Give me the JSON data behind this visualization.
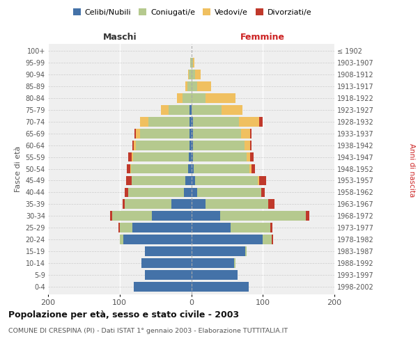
{
  "age_groups": [
    "0-4",
    "5-9",
    "10-14",
    "15-19",
    "20-24",
    "25-29",
    "30-34",
    "35-39",
    "40-44",
    "45-49",
    "50-54",
    "55-59",
    "60-64",
    "65-69",
    "70-74",
    "75-79",
    "80-84",
    "85-89",
    "90-94",
    "95-99",
    "100+"
  ],
  "birth_years": [
    "1998-2002",
    "1993-1997",
    "1988-1992",
    "1983-1987",
    "1978-1982",
    "1973-1977",
    "1968-1972",
    "1963-1967",
    "1958-1962",
    "1953-1957",
    "1948-1952",
    "1943-1947",
    "1938-1942",
    "1933-1937",
    "1928-1932",
    "1923-1927",
    "1918-1922",
    "1913-1917",
    "1908-1912",
    "1903-1907",
    "≤ 1902"
  ],
  "maschi": {
    "celibi": [
      80,
      65,
      70,
      65,
      95,
      82,
      55,
      28,
      10,
      8,
      4,
      3,
      2,
      2,
      2,
      2,
      0,
      0,
      0,
      0,
      0
    ],
    "coniugati": [
      0,
      0,
      0,
      0,
      5,
      18,
      55,
      65,
      78,
      75,
      80,
      78,
      75,
      70,
      58,
      30,
      12,
      5,
      3,
      1,
      0
    ],
    "vedovi": [
      0,
      0,
      0,
      0,
      0,
      0,
      0,
      0,
      0,
      0,
      1,
      2,
      3,
      5,
      12,
      10,
      8,
      3,
      1,
      0,
      0
    ],
    "divorziati": [
      0,
      0,
      0,
      0,
      0,
      2,
      3,
      3,
      5,
      8,
      5,
      5,
      2,
      2,
      0,
      0,
      0,
      0,
      0,
      0,
      0
    ]
  },
  "femmine": {
    "nubili": [
      80,
      65,
      60,
      75,
      100,
      55,
      40,
      20,
      8,
      5,
      3,
      2,
      2,
      2,
      2,
      0,
      0,
      0,
      0,
      0,
      0
    ],
    "coniugate": [
      0,
      0,
      2,
      2,
      12,
      55,
      120,
      88,
      90,
      88,
      78,
      75,
      72,
      68,
      65,
      42,
      20,
      8,
      5,
      2,
      0
    ],
    "vedove": [
      0,
      0,
      0,
      0,
      0,
      0,
      0,
      0,
      0,
      2,
      3,
      5,
      8,
      12,
      28,
      30,
      42,
      20,
      8,
      2,
      0
    ],
    "divorziate": [
      0,
      0,
      0,
      0,
      2,
      3,
      5,
      8,
      5,
      10,
      5,
      5,
      2,
      2,
      5,
      0,
      0,
      0,
      0,
      0,
      0
    ]
  },
  "colors": {
    "celibi_nubili": "#4472a8",
    "coniugati": "#b5c98e",
    "vedovi": "#f0c060",
    "divorziati": "#c0392b"
  },
  "xlim": 200,
  "title": "Popolazione per età, sesso e stato civile - 2003",
  "subtitle": "COMUNE DI CRESPINA (PI) - Dati ISTAT 1° gennaio 2003 - Elaborazione TUTTITALIA.IT",
  "ylabel_left": "Fasce di età",
  "ylabel_right": "Anni di nascita",
  "xlabel_left": "Maschi",
  "xlabel_right": "Femmine",
  "legend_labels": [
    "Celibi/Nubili",
    "Coniugati/e",
    "Vedovi/e",
    "Divorziati/e"
  ],
  "bg_color": "#ffffff",
  "plot_bg_color": "#efefef"
}
